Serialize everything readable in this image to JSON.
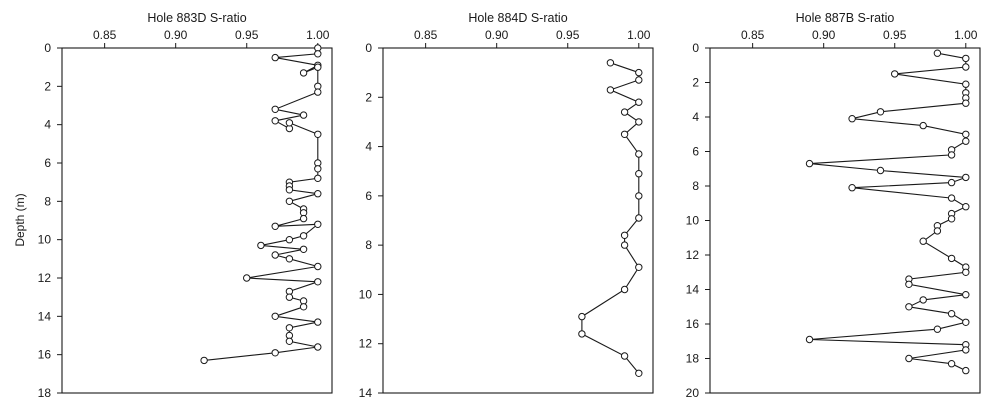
{
  "chart_data": [
    {
      "type": "line",
      "title": "Hole 883D S-ratio",
      "ylabel": "Depth (m)",
      "xlim": [
        0.82,
        1.01
      ],
      "ylim": [
        0,
        18
      ],
      "xticks": [
        "0.85",
        "0.90",
        "0.95",
        "1.00"
      ],
      "xtick_values": [
        0.85,
        0.9,
        0.95,
        1.0
      ],
      "yticks": [
        0,
        2,
        4,
        6,
        8,
        10,
        12,
        14,
        16,
        18
      ],
      "x_axis_position": "top",
      "y_inverted": true,
      "grid": false,
      "marker": "open-circle",
      "series": [
        {
          "points": [
            [
              1.0,
              0.0
            ],
            [
              1.0,
              0.3
            ],
            [
              0.97,
              0.5
            ],
            [
              1.0,
              0.9
            ],
            [
              0.99,
              1.3
            ],
            [
              1.0,
              1.0
            ],
            [
              1.0,
              2.0
            ],
            [
              1.0,
              2.3
            ],
            [
              0.97,
              3.2
            ],
            [
              0.99,
              3.5
            ],
            [
              0.97,
              3.8
            ],
            [
              0.98,
              4.2
            ],
            [
              0.98,
              3.9
            ],
            [
              1.0,
              4.5
            ],
            [
              1.0,
              6.0
            ],
            [
              1.0,
              6.3
            ],
            [
              1.0,
              6.8
            ],
            [
              0.98,
              7.0
            ],
            [
              0.98,
              7.2
            ],
            [
              0.98,
              7.4
            ],
            [
              1.0,
              7.6
            ],
            [
              0.98,
              8.0
            ],
            [
              0.99,
              8.4
            ],
            [
              0.99,
              8.6
            ],
            [
              0.99,
              8.9
            ],
            [
              0.97,
              9.3
            ],
            [
              1.0,
              9.2
            ],
            [
              0.99,
              9.8
            ],
            [
              0.98,
              10.0
            ],
            [
              0.96,
              10.3
            ],
            [
              0.99,
              10.5
            ],
            [
              0.97,
              10.8
            ],
            [
              0.98,
              11.0
            ],
            [
              1.0,
              11.4
            ],
            [
              0.95,
              12.0
            ],
            [
              1.0,
              12.2
            ],
            [
              0.98,
              12.7
            ],
            [
              0.98,
              13.0
            ],
            [
              0.99,
              13.2
            ],
            [
              0.99,
              13.5
            ],
            [
              0.97,
              14.0
            ],
            [
              1.0,
              14.3
            ],
            [
              0.98,
              14.6
            ],
            [
              0.98,
              15.0
            ],
            [
              0.98,
              15.3
            ],
            [
              1.0,
              15.6
            ],
            [
              0.97,
              15.9
            ],
            [
              0.92,
              16.3
            ]
          ]
        }
      ]
    },
    {
      "type": "line",
      "title": "Hole 884D S-ratio",
      "xlim": [
        0.82,
        1.01
      ],
      "ylim": [
        0,
        14
      ],
      "xticks": [
        "0.85",
        "0.90",
        "0.95",
        "1.00"
      ],
      "xtick_values": [
        0.85,
        0.9,
        0.95,
        1.0
      ],
      "yticks": [
        0,
        2,
        4,
        6,
        8,
        10,
        12,
        14
      ],
      "x_axis_position": "top",
      "y_inverted": true,
      "grid": false,
      "marker": "open-circle",
      "series": [
        {
          "points": [
            [
              0.98,
              0.6
            ],
            [
              1.0,
              1.0
            ],
            [
              1.0,
              1.3
            ],
            [
              0.98,
              1.7
            ],
            [
              1.0,
              2.2
            ],
            [
              0.99,
              2.6
            ],
            [
              1.0,
              3.0
            ],
            [
              0.99,
              3.5
            ],
            [
              1.0,
              4.3
            ],
            [
              1.0,
              5.1
            ],
            [
              1.0,
              6.0
            ],
            [
              1.0,
              6.9
            ],
            [
              0.99,
              7.6
            ],
            [
              0.99,
              8.0
            ],
            [
              1.0,
              8.9
            ],
            [
              0.99,
              9.8
            ],
            [
              0.96,
              10.9
            ],
            [
              0.96,
              11.6
            ],
            [
              0.99,
              12.5
            ],
            [
              1.0,
              13.2
            ]
          ]
        }
      ]
    },
    {
      "type": "line",
      "title": "Hole 887B S-ratio",
      "xlim": [
        0.82,
        1.01
      ],
      "ylim": [
        0,
        20
      ],
      "xticks": [
        "0.85",
        "0.90",
        "0.95",
        "1.00"
      ],
      "xtick_values": [
        0.85,
        0.9,
        0.95,
        1.0
      ],
      "yticks": [
        0,
        2,
        4,
        6,
        8,
        10,
        12,
        14,
        16,
        18,
        20
      ],
      "x_axis_position": "top",
      "y_inverted": true,
      "grid": false,
      "marker": "open-circle",
      "series": [
        {
          "points": [
            [
              0.98,
              0.3
            ],
            [
              1.0,
              0.6
            ],
            [
              1.0,
              1.1
            ],
            [
              0.95,
              1.5
            ],
            [
              1.0,
              2.1
            ],
            [
              1.0,
              2.6
            ],
            [
              1.0,
              2.9
            ],
            [
              1.0,
              3.2
            ],
            [
              0.94,
              3.7
            ],
            [
              0.92,
              4.1
            ],
            [
              0.97,
              4.5
            ],
            [
              1.0,
              5.0
            ],
            [
              1.0,
              5.4
            ],
            [
              0.99,
              5.9
            ],
            [
              0.99,
              6.2
            ],
            [
              0.89,
              6.7
            ],
            [
              0.94,
              7.1
            ],
            [
              1.0,
              7.5
            ],
            [
              0.99,
              7.8
            ],
            [
              0.92,
              8.1
            ],
            [
              0.99,
              8.7
            ],
            [
              1.0,
              9.2
            ],
            [
              0.99,
              9.6
            ],
            [
              0.99,
              9.9
            ],
            [
              0.98,
              10.3
            ],
            [
              0.98,
              10.6
            ],
            [
              0.97,
              11.2
            ],
            [
              0.99,
              12.2
            ],
            [
              1.0,
              12.7
            ],
            [
              1.0,
              13.0
            ],
            [
              0.96,
              13.4
            ],
            [
              0.96,
              13.7
            ],
            [
              1.0,
              14.3
            ],
            [
              0.97,
              14.6
            ],
            [
              0.96,
              15.0
            ],
            [
              0.99,
              15.4
            ],
            [
              1.0,
              15.9
            ],
            [
              0.98,
              16.3
            ],
            [
              0.89,
              16.9
            ],
            [
              1.0,
              17.2
            ],
            [
              1.0,
              17.5
            ],
            [
              0.96,
              18.0
            ],
            [
              0.99,
              18.3
            ],
            [
              1.0,
              18.7
            ]
          ]
        }
      ]
    }
  ]
}
